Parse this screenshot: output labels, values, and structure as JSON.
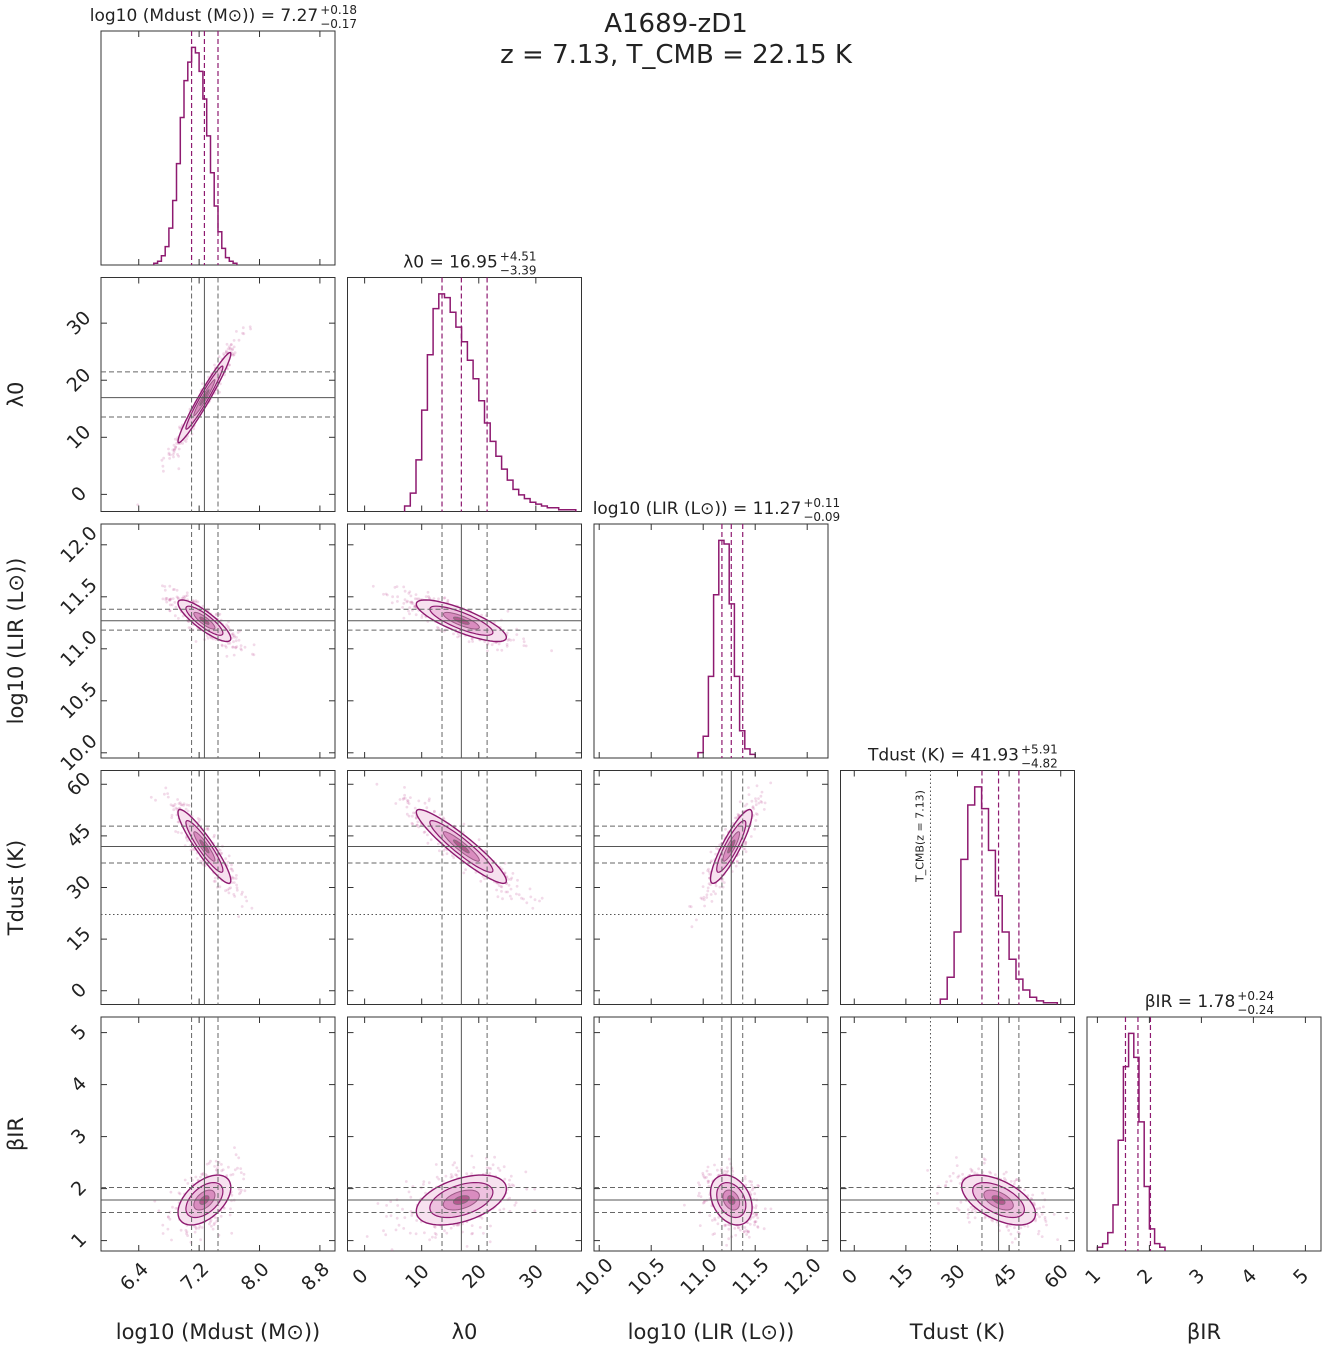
{
  "figure": {
    "title": "A1689-zD1",
    "subtitle": "z = 7.13, T_CMB = 22.15 K"
  },
  "chart_data": {
    "type": "corner",
    "title": "A1689-zD1",
    "subtitle": "z = 7.13, T_CMB = 22.15 K",
    "accent_color": "#8e1a70",
    "cloud_color": "#c2579d",
    "params": [
      {
        "key": "Mdust",
        "label": "log10 (Mdust (M⊙))",
        "title_main": "log10 (Mdust (M⊙)) = 7.27",
        "plus": "+0.18",
        "minus": "−0.17",
        "median": 7.27,
        "q16": 7.1,
        "q84": 7.45,
        "range": [
          5.9,
          9.0
        ],
        "ticks": [
          6.4,
          7.2,
          8.0,
          8.8
        ],
        "tick_labels": [
          "6.4",
          "7.2",
          "8.0",
          "8.8"
        ]
      },
      {
        "key": "lambda0",
        "label": "λ0",
        "title_main": "λ0 = 16.95",
        "plus": "+4.51",
        "minus": "−3.39",
        "median": 16.95,
        "q16": 13.56,
        "q84": 21.46,
        "range": [
          -3,
          38
        ],
        "ticks": [
          0,
          10,
          20,
          30
        ],
        "tick_labels": [
          "0",
          "10",
          "20",
          "30"
        ]
      },
      {
        "key": "LIR",
        "label": "log10 (LIR (L⊙))",
        "title_main": "log10 (LIR (L⊙)) = 11.27",
        "plus": "+0.11",
        "minus": "−0.09",
        "median": 11.27,
        "q16": 11.18,
        "q84": 11.38,
        "range": [
          9.95,
          12.2
        ],
        "ticks": [
          10.0,
          10.5,
          11.0,
          11.5,
          12.0
        ],
        "tick_labels": [
          "10.0",
          "10.5",
          "11.0",
          "11.5",
          "12.0"
        ]
      },
      {
        "key": "Tdust",
        "label": "Tdust (K)",
        "title_main": "Tdust (K) = 41.93",
        "plus": "+5.91",
        "minus": "−4.82",
        "median": 41.93,
        "q16": 37.11,
        "q84": 47.84,
        "range": [
          -4,
          64
        ],
        "ticks": [
          0,
          15,
          30,
          45,
          60
        ],
        "tick_labels": [
          "0",
          "15",
          "30",
          "45",
          "60"
        ]
      },
      {
        "key": "betaIR",
        "label": "βIR",
        "title_main": "βIR = 1.78",
        "plus": "+0.24",
        "minus": "−0.24",
        "median": 1.78,
        "q16": 1.54,
        "q84": 2.02,
        "range": [
          0.8,
          5.3
        ],
        "ticks": [
          1,
          2,
          3,
          4,
          5
        ],
        "tick_labels": [
          "1",
          "2",
          "3",
          "4",
          "5"
        ]
      }
    ],
    "tcmb": {
      "value": 22.15,
      "label": "T_CMB(z = 7.13)"
    },
    "histograms": [
      {
        "param": "Mdust",
        "step": 0.05,
        "start": 6.6,
        "counts": [
          1,
          2,
          5,
          10,
          20,
          35,
          55,
          80,
          100,
          110,
          118,
          115,
          105,
          90,
          70,
          50,
          32,
          18,
          9,
          4,
          2,
          1
        ]
      },
      {
        "param": "lambda0",
        "step": 1.0,
        "start": 7,
        "counts": [
          3,
          10,
          28,
          55,
          85,
          110,
          118,
          116,
          108,
          100,
          92,
          82,
          72,
          60,
          48,
          38,
          30,
          23,
          17,
          12,
          9,
          7,
          5,
          4,
          3,
          2,
          2,
          1,
          1,
          1
        ]
      },
      {
        "param": "LIR",
        "step": 0.05,
        "start": 10.95,
        "counts": [
          3,
          12,
          45,
          90,
          120,
          118,
          85,
          45,
          15,
          5,
          2
        ]
      },
      {
        "param": "Tdust",
        "step": 2.0,
        "start": 25,
        "counts": [
          3,
          15,
          40,
          80,
          110,
          120,
          108,
          85,
          60,
          40,
          25,
          14,
          8,
          4,
          2,
          1,
          1
        ]
      },
      {
        "param": "betaIR",
        "step": 0.1,
        "start": 1.0,
        "counts": [
          2,
          4,
          10,
          25,
          60,
          100,
          118,
          105,
          70,
          35,
          12,
          4,
          2
        ]
      }
    ],
    "correlations": {
      "lambda0|Mdust": 0.97,
      "LIR|Mdust": -0.85,
      "LIR|lambda0": -0.8,
      "Tdust|Mdust": -0.92,
      "Tdust|lambda0": -0.93,
      "Tdust|LIR": 0.88,
      "betaIR|Mdust": 0.5,
      "betaIR|lambda0": 0.45,
      "betaIR|LIR": -0.3,
      "betaIR|Tdust": -0.55
    }
  }
}
